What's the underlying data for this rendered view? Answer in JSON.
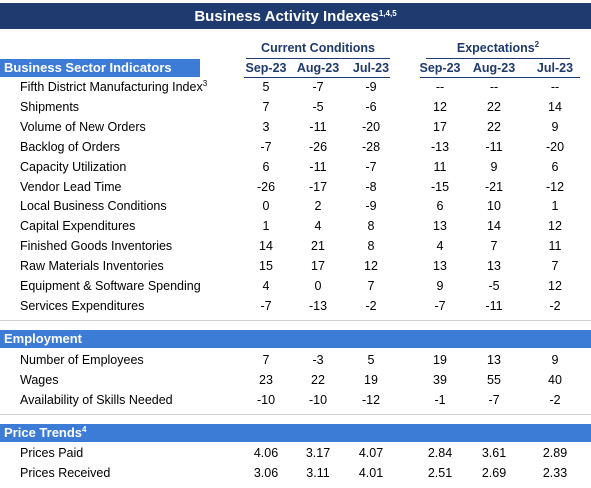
{
  "title": {
    "text": "Business Activity Indexes",
    "note": "1,4,5"
  },
  "groups": [
    {
      "label": "Current Conditions"
    },
    {
      "label": "Expectations",
      "note": "2"
    }
  ],
  "columns": [
    "Sep-23",
    "Aug-23",
    "Jul-23",
    "Sep-23",
    "Aug-23",
    "Jul-23"
  ],
  "sections": [
    {
      "title": "Business Sector Indicators",
      "rows": [
        {
          "label": "Fifth District Manufacturing Index",
          "note": "3",
          "values": [
            5,
            -7,
            -9,
            "--",
            "--",
            "--"
          ]
        },
        {
          "label": "Shipments",
          "values": [
            7,
            -5,
            -6,
            12,
            22,
            14
          ]
        },
        {
          "label": "Volume of New Orders",
          "values": [
            3,
            -11,
            -20,
            17,
            22,
            9
          ]
        },
        {
          "label": "Backlog of Orders",
          "values": [
            -7,
            -26,
            -28,
            -13,
            -11,
            -20
          ]
        },
        {
          "label": "Capacity Utilization",
          "values": [
            6,
            -11,
            -7,
            11,
            9,
            6
          ]
        },
        {
          "label": "Vendor Lead Time",
          "values": [
            -26,
            -17,
            -8,
            -15,
            -21,
            -12
          ]
        },
        {
          "label": "Local Business Conditions",
          "values": [
            0,
            2,
            -9,
            6,
            10,
            1
          ]
        },
        {
          "label": "Capital Expenditures",
          "values": [
            1,
            4,
            8,
            13,
            14,
            12
          ]
        },
        {
          "label": "Finished Goods Inventories",
          "values": [
            14,
            21,
            8,
            4,
            7,
            11
          ]
        },
        {
          "label": "Raw Materials Inventories",
          "values": [
            15,
            17,
            12,
            13,
            13,
            7
          ]
        },
        {
          "label": "Equipment & Software Spending",
          "values": [
            4,
            0,
            7,
            9,
            -5,
            12
          ]
        },
        {
          "label": "Services Expenditures",
          "values": [
            -7,
            -13,
            -2,
            -7,
            -11,
            -2
          ]
        }
      ]
    },
    {
      "title": "Employment",
      "rows": [
        {
          "label": "Number of Employees",
          "values": [
            7,
            -3,
            5,
            19,
            13,
            9
          ]
        },
        {
          "label": "Wages",
          "values": [
            23,
            22,
            19,
            39,
            55,
            40
          ]
        },
        {
          "label": "Availability of Skills Needed",
          "values": [
            -10,
            -10,
            -12,
            -1,
            -7,
            -2
          ]
        }
      ]
    },
    {
      "title": "Price Trends",
      "note": "4",
      "rows": [
        {
          "label": "Prices Paid",
          "values": [
            4.06,
            3.17,
            4.07,
            2.84,
            3.61,
            2.89
          ]
        },
        {
          "label": "Prices Received",
          "values": [
            3.06,
            3.11,
            4.01,
            2.51,
            2.69,
            2.33
          ]
        }
      ]
    }
  ]
}
